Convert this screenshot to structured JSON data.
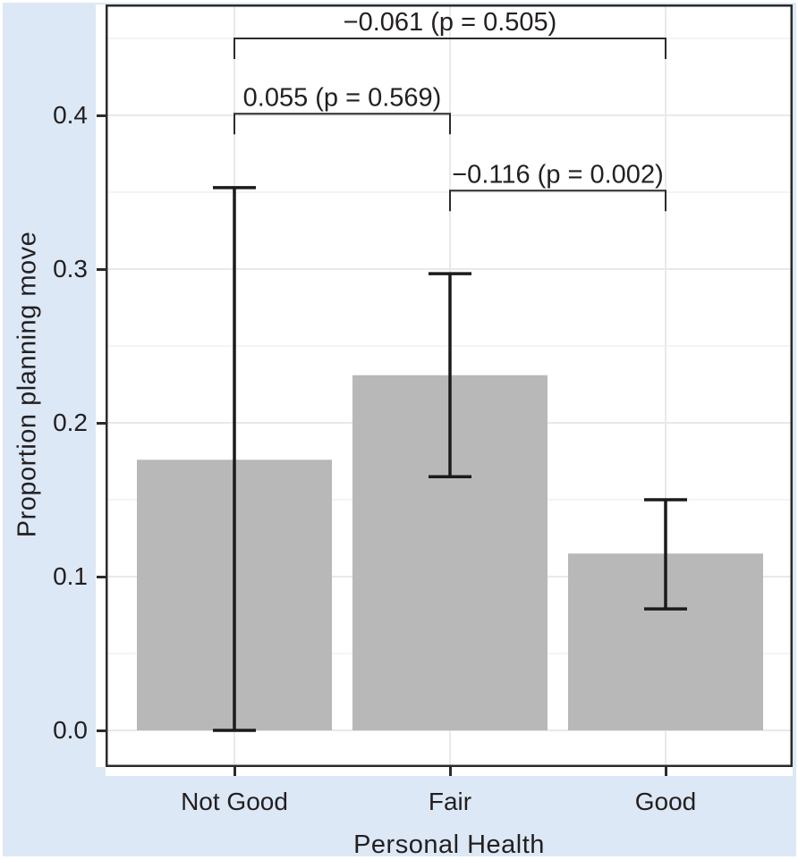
{
  "figure": {
    "background_color": "#dce8f5",
    "panel_color": "#ffffff",
    "border_color": "#2b2b2b",
    "bar_color": "#b8b8b8",
    "grid_major_color": "#e9e9e9",
    "grid_minor_color": "#f4f4f4",
    "errorbar_color": "#1b1b1b",
    "text_color": "#231f20"
  },
  "chart_data": {
    "type": "bar",
    "title": "",
    "xlabel": "Personal Health",
    "ylabel": "Proportion planning move",
    "categories": [
      "Not Good",
      "Fair",
      "Good"
    ],
    "values": [
      0.176,
      0.231,
      0.115
    ],
    "error_bars": [
      {
        "category": "Not Good",
        "low": 0.0,
        "high": 0.353
      },
      {
        "category": "Fair",
        "low": 0.165,
        "high": 0.297
      },
      {
        "category": "Good",
        "low": 0.079,
        "high": 0.15
      }
    ],
    "comparisons": [
      {
        "from": "Not Good",
        "to": "Good",
        "label": "−0.061 (p = 0.505)",
        "bracket_y": 0.45
      },
      {
        "from": "Not Good",
        "to": "Fair",
        "label": "0.055 (p = 0.569)",
        "bracket_y": 0.401
      },
      {
        "from": "Fair",
        "to": "Good",
        "label": "−0.116 (p = 0.002)",
        "bracket_y": 0.351
      }
    ],
    "yticks": [
      0.0,
      0.1,
      0.2,
      0.3,
      0.4
    ],
    "ytick_labels": [
      "0.0",
      "0.1",
      "0.2",
      "0.3",
      "0.4"
    ],
    "ylim": [
      0,
      0.47
    ],
    "grid": true,
    "legend": false
  }
}
